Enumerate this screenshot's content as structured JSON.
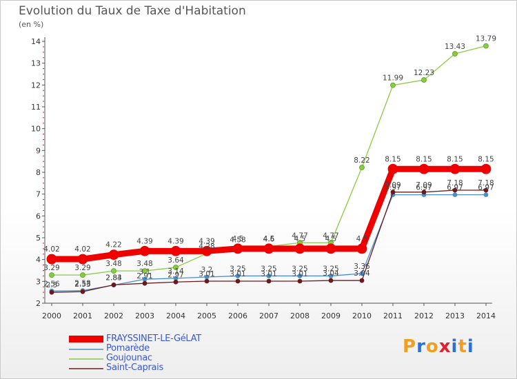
{
  "title": "Evolution du Taux de Taxe d'Habitation",
  "unit_label": "(en %)",
  "logo_text": "Proxiti",
  "colors": {
    "axis": "#555555",
    "tick_minor": "#cc2244",
    "logo_palette": [
      "#f0a020",
      "#3070d0",
      "#f0a020",
      "#e02030",
      "#3070d0",
      "#f0a020",
      "#3070d0"
    ]
  },
  "chart_data": {
    "type": "line",
    "title": "Evolution du Taux de Taxe d'Habitation",
    "ylabel": "(en %)",
    "xlabel": "",
    "x": [
      "2000",
      "2001",
      "2002",
      "2003",
      "2004",
      "2005",
      "2006",
      "2007",
      "2008",
      "2009",
      "2010",
      "2011",
      "2012",
      "2013",
      "2014"
    ],
    "ylim": [
      2,
      14
    ],
    "yticks": [
      "2",
      "3",
      "4",
      "5",
      "6",
      "7",
      "8",
      "9",
      "10",
      "11",
      "12",
      "13",
      "14"
    ],
    "grid": false,
    "legend_position": "bottom-left",
    "series": [
      {
        "name": "FRAYSSINET-LE-GéLAT",
        "color": "#ee0000",
        "values": [
          4.02,
          4.02,
          4.22,
          4.39,
          4.39,
          4.39,
          4.5,
          4.5,
          4.5,
          4.5,
          4.5,
          8.15,
          8.15,
          8.15,
          8.15
        ],
        "labels": [
          "4.02",
          "4.02",
          "4.22",
          "4.39",
          "4.39",
          "4.39",
          "4.5",
          "4.5",
          "4.5",
          "4.5",
          "4.5",
          "8.15",
          "8.15",
          "8.15",
          "8.15"
        ]
      },
      {
        "name": "Pomarède",
        "color": "#4a8ec8",
        "values": [
          2.56,
          2.58,
          2.83,
          3.1,
          3.14,
          3.2,
          3.25,
          3.25,
          3.25,
          3.25,
          3.36,
          6.97,
          6.97,
          6.97,
          6.97
        ],
        "labels": [
          "2.56",
          "2.58",
          "2.83",
          "3.1",
          "3.14",
          "3.2",
          "3.25",
          "3.25",
          "3.25",
          "3.25",
          "3.36",
          "6.97",
          "6.97",
          "6.97",
          "6.97"
        ]
      },
      {
        "name": "Goujounac",
        "color": "#88cc44",
        "values": [
          3.29,
          3.29,
          3.48,
          3.48,
          3.64,
          4.28,
          4.58,
          4.6,
          4.77,
          4.77,
          8.22,
          11.99,
          12.23,
          13.43,
          13.79
        ],
        "labels": [
          "3.29",
          "3.29",
          "3.48",
          "3.48",
          "3.64",
          "4.28",
          "4.58",
          "4.6",
          "4.77",
          "4.77",
          "8.22",
          "11.99",
          "12.23",
          "13.43",
          "13.79"
        ]
      },
      {
        "name": "Saint-Caprais",
        "color": "#6a1a1a",
        "values": [
          2.5,
          2.53,
          2.84,
          2.91,
          2.97,
          3.01,
          3.01,
          3.01,
          3.01,
          3.04,
          3.04,
          7.09,
          7.09,
          7.18,
          7.18
        ],
        "labels": [
          "2.5",
          "2.53",
          "2.84",
          "2.91",
          "2.97",
          "3.01",
          "3.01",
          "3.01",
          "3.01",
          "3.04",
          "3.04",
          "7.09",
          "7.09",
          "7.18",
          "7.18"
        ]
      }
    ]
  }
}
